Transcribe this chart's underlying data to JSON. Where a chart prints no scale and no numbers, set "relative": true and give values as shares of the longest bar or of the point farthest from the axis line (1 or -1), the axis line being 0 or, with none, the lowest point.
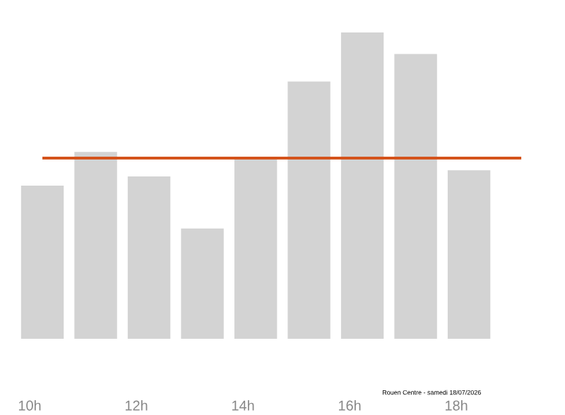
{
  "chart_data": {
    "type": "bar",
    "relative": true,
    "categories": [
      "10h",
      null,
      "12h",
      null,
      "14h",
      null,
      "16h",
      null,
      "18h"
    ],
    "values": [
      0.5,
      0.61,
      0.53,
      0.36,
      0.59,
      0.84,
      1,
      0.93,
      0.55
    ],
    "color": "#d3d3d3",
    "ref_lines": [
      {
        "axis": "y",
        "value": 0.59,
        "color": "#d4531b"
      }
    ],
    "annotations": [
      "Rouen Centre - samedi 18/07/2026"
    ]
  }
}
